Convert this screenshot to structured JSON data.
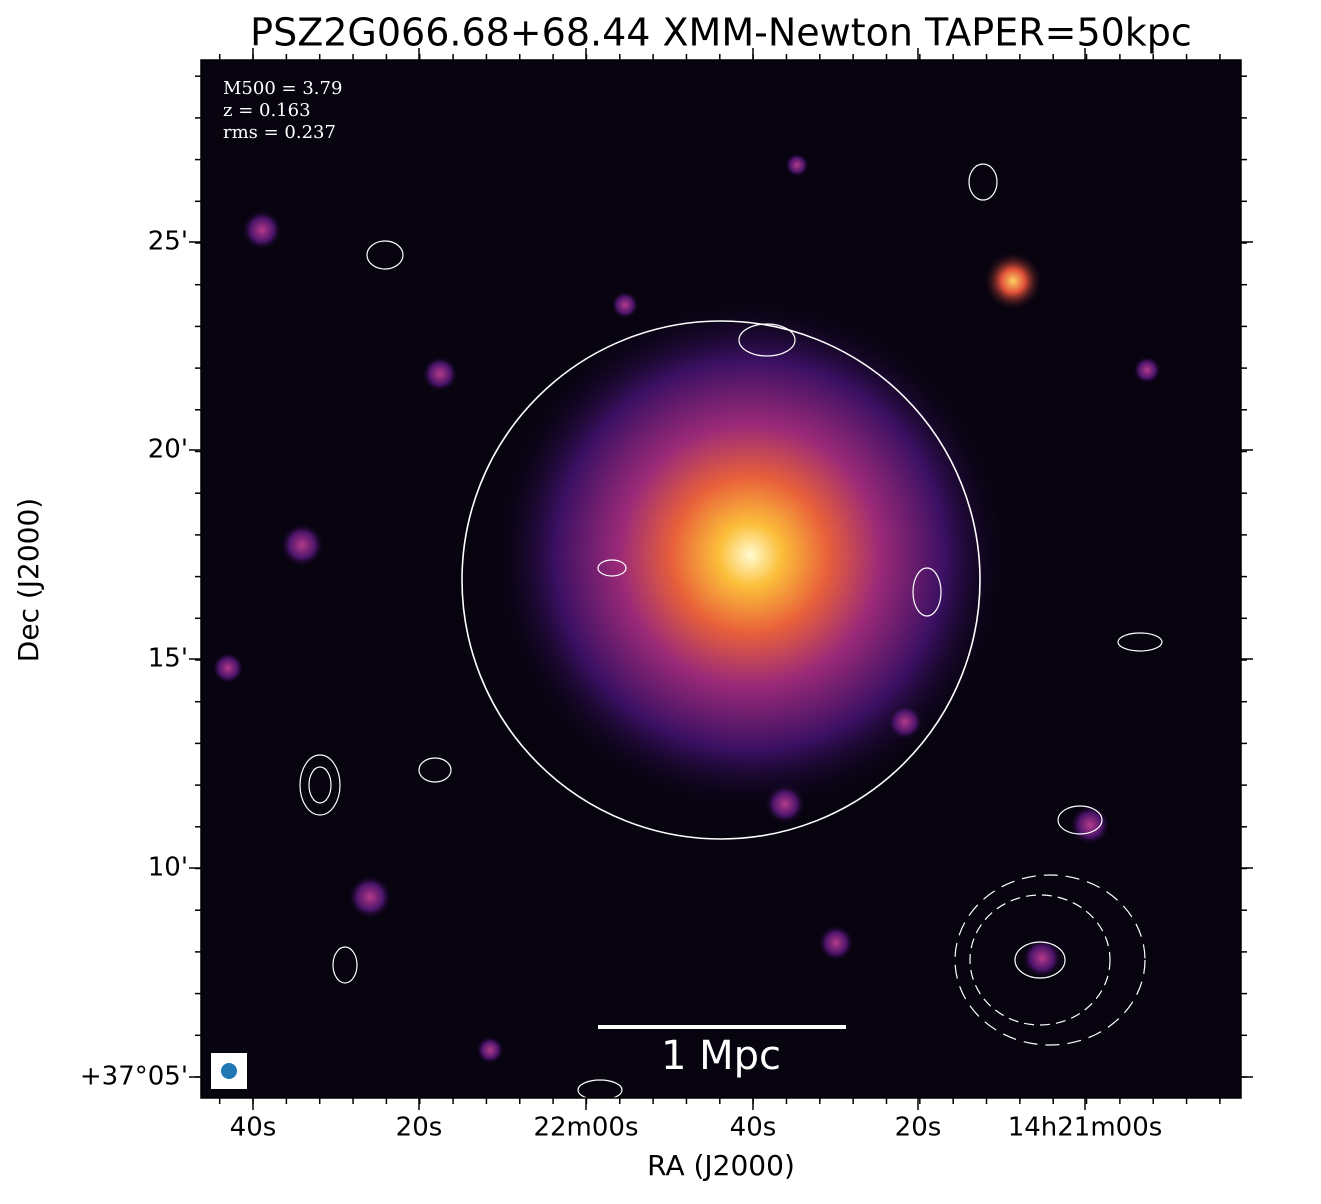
{
  "title": "PSZ2G066.68+68.44 XMM-Newton TAPER=50kpc",
  "x_axis": {
    "label": "RA (J2000)",
    "ticks": [
      "40s",
      "20s",
      "22m00s",
      "40s",
      "20s",
      "14h21m00s"
    ]
  },
  "y_axis": {
    "label": "Dec (J2000)",
    "ticks": [
      "25'",
      "20'",
      "15'",
      "10'",
      "+37°05'"
    ]
  },
  "annotations": [
    "M500 = 3.79",
    "z = 0.163",
    "rms = 0.237"
  ],
  "scale_bar": "1 Mpc"
}
